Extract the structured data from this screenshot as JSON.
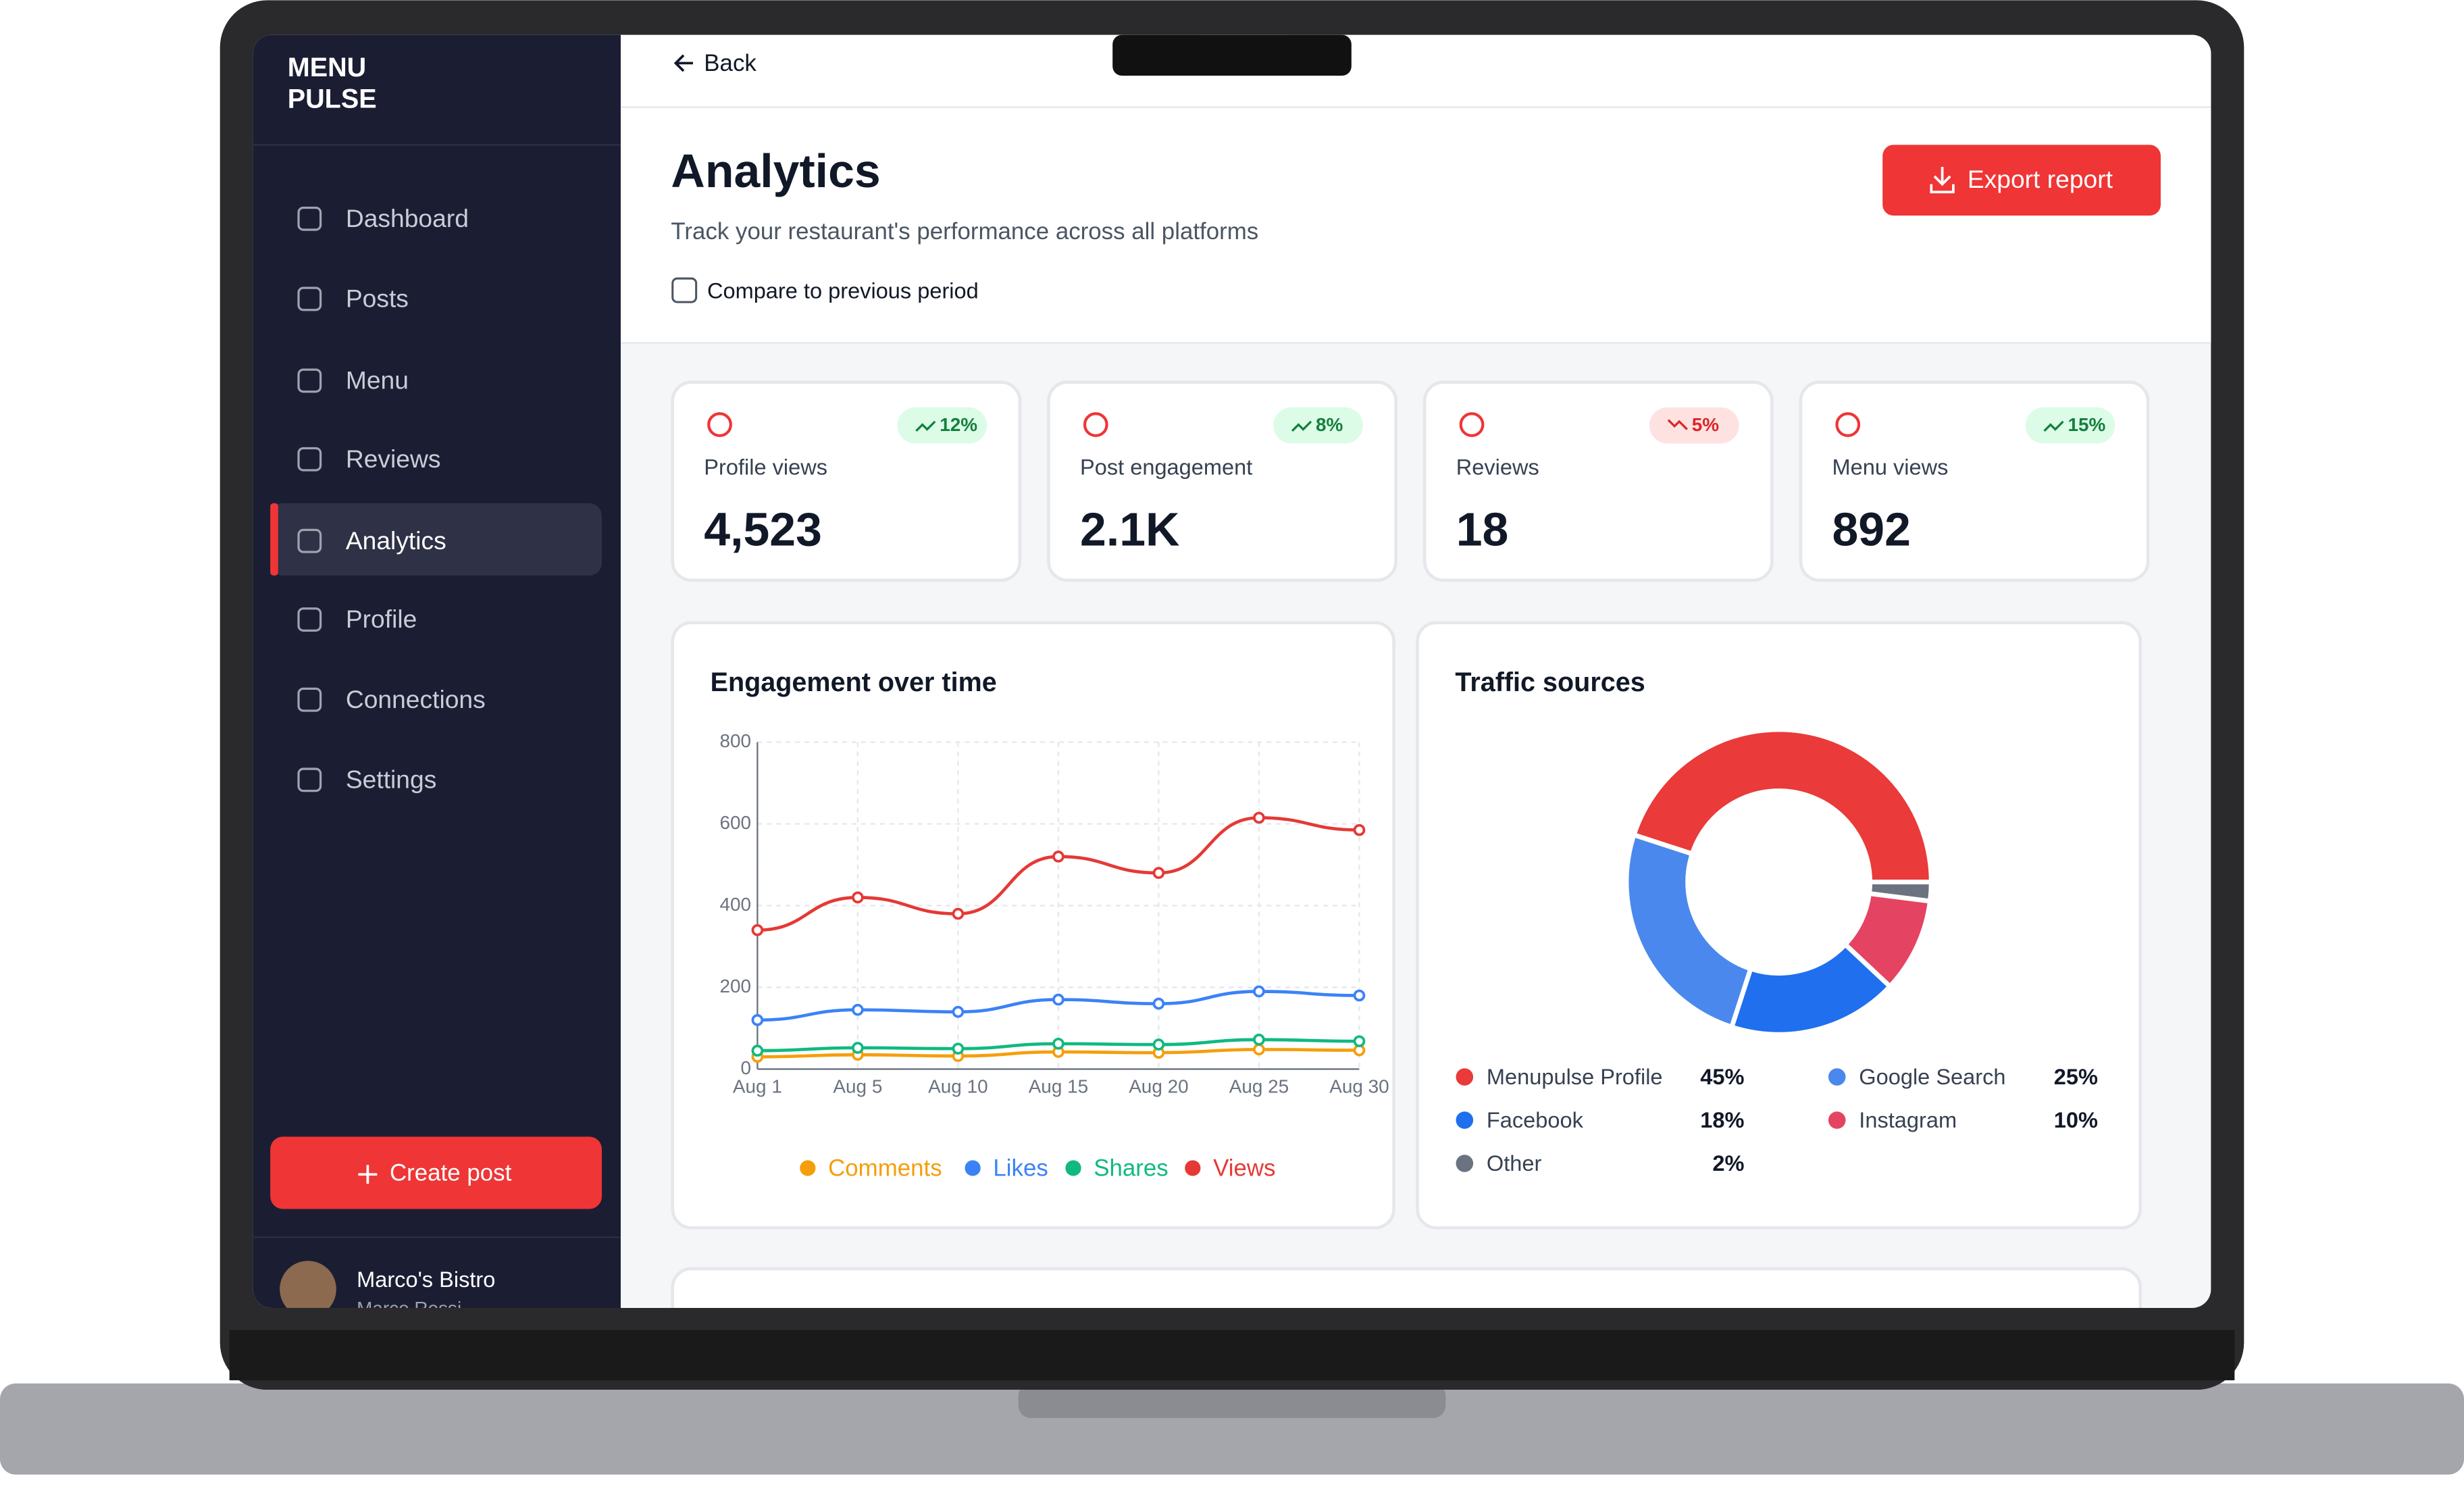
{
  "sidebar": {
    "logo": [
      "MENU",
      "PULSE"
    ],
    "nav": [
      "Dashboard",
      "Posts",
      "Menu",
      "Reviews",
      "Analytics",
      "Profile",
      "Connections",
      "Settings"
    ],
    "create_post": "Create post",
    "user": {
      "name": "Marco's Bistro",
      "subtitle": "Marco Rossi"
    }
  },
  "header": {
    "back": "Back",
    "title": "Analytics",
    "subtitle": "Track your restaurant's performance across all platforms",
    "compare": "Compare to previous period",
    "export": "Export report"
  },
  "stats": [
    {
      "label": "Profile views",
      "value": "4,523",
      "change": "12%",
      "trend": "up"
    },
    {
      "label": "Post engagement",
      "value": "2.1K",
      "change": "8%",
      "trend": "up"
    },
    {
      "label": "Reviews",
      "value": "18",
      "change": "5%",
      "trend": "down"
    },
    {
      "label": "Menu views",
      "value": "892",
      "change": "15%",
      "trend": "up"
    }
  ],
  "chart_data": [
    {
      "type": "line",
      "title": "Engagement over time",
      "categories": [
        "Aug 1",
        "Aug 5",
        "Aug 10",
        "Aug 15",
        "Aug 20",
        "Aug 25",
        "Aug 30"
      ],
      "series": [
        {
          "name": "Comments",
          "color": "#f59e0b",
          "values": [
            30,
            35,
            32,
            42,
            40,
            48,
            46
          ]
        },
        {
          "name": "Likes",
          "color": "#3b82f6",
          "values": [
            120,
            145,
            140,
            170,
            160,
            190,
            180
          ]
        },
        {
          "name": "Shares",
          "color": "#10b981",
          "values": [
            45,
            52,
            50,
            62,
            60,
            72,
            68
          ]
        },
        {
          "name": "Views",
          "color": "#e53935",
          "values": [
            340,
            420,
            380,
            520,
            480,
            615,
            585
          ]
        }
      ],
      "ylim": [
        0,
        800
      ],
      "yticks": [
        0,
        200,
        400,
        600,
        800
      ],
      "grid": true
    },
    {
      "type": "donut",
      "title": "Traffic sources",
      "categories": [
        "Menupulse Profile",
        "Google Search",
        "Facebook",
        "Instagram",
        "Other"
      ],
      "values": [
        45,
        25,
        18,
        10,
        2
      ],
      "value_labels": [
        "45%",
        "25%",
        "18%",
        "10%",
        "2%"
      ],
      "colors": [
        "#ea3a3a",
        "#4a88ee",
        "#1f6fee",
        "#e44462",
        "#6b7280"
      ]
    }
  ]
}
